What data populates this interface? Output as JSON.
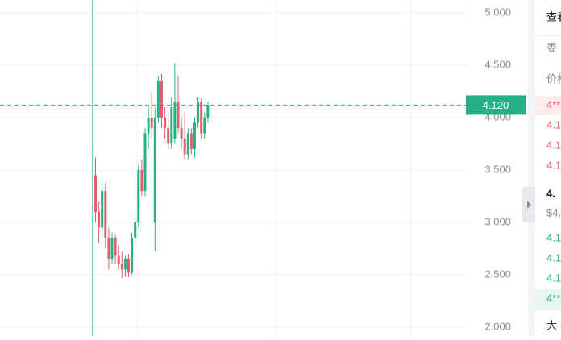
{
  "chart_data": {
    "type": "candlestick",
    "categories": [
      null,
      null,
      null,
      null,
      null,
      null,
      null,
      null,
      null,
      null,
      null,
      null,
      null,
      null,
      null,
      null,
      null,
      null,
      null,
      null,
      null,
      null,
      null,
      null,
      null,
      null,
      null,
      null,
      null,
      null,
      null,
      null,
      null,
      null,
      null
    ],
    "open": [
      3.45,
      3.1,
      2.95,
      3.3,
      2.85,
      2.65,
      2.85,
      2.68,
      2.6,
      2.55,
      2.65,
      2.52,
      2.85,
      3.0,
      3.5,
      3.3,
      3.85,
      4.0,
      3.0,
      4.0,
      4.35,
      4.0,
      3.9,
      3.75,
      3.8,
      4.15,
      3.9,
      3.8,
      3.65,
      3.85,
      3.7,
      3.95,
      4.15,
      3.85,
      4.0
    ],
    "high": [
      3.62,
      3.2,
      3.38,
      3.38,
      2.95,
      2.9,
      2.88,
      2.78,
      2.72,
      2.68,
      2.7,
      2.9,
      3.05,
      3.55,
      3.6,
      3.9,
      4.1,
      4.25,
      4.1,
      4.4,
      4.42,
      4.1,
      4.05,
      4.2,
      4.52,
      4.4,
      4.0,
      4.05,
      3.9,
      3.9,
      4.0,
      4.2,
      4.18,
      4.05,
      4.15
    ],
    "low": [
      3.0,
      2.8,
      2.85,
      2.75,
      2.55,
      2.6,
      2.6,
      2.55,
      2.47,
      2.48,
      2.48,
      2.5,
      2.78,
      2.95,
      3.25,
      3.25,
      3.7,
      3.8,
      2.72,
      3.95,
      3.9,
      3.8,
      3.7,
      3.7,
      3.75,
      3.85,
      3.7,
      3.6,
      3.6,
      3.65,
      3.62,
      3.9,
      3.8,
      3.8,
      3.95
    ],
    "close": [
      3.1,
      2.95,
      3.3,
      2.85,
      2.65,
      2.85,
      2.68,
      2.6,
      2.55,
      2.65,
      2.52,
      2.85,
      3.0,
      3.5,
      3.3,
      3.85,
      4.0,
      3.9,
      4.0,
      4.35,
      4.0,
      3.9,
      3.75,
      4.1,
      4.15,
      3.9,
      3.8,
      3.65,
      3.85,
      3.7,
      3.95,
      4.15,
      3.85,
      4.0,
      4.12
    ],
    "up_color": "#26b086",
    "down_color": "#e35d6a",
    "ylim": [
      1.915,
      5.123
    ],
    "yticks": [
      {
        "value": 2,
        "label": "2.000"
      },
      {
        "value": 2.5,
        "label": "2.500"
      },
      {
        "value": 3,
        "label": "3.000"
      },
      {
        "value": 3.5,
        "label": "3.500"
      },
      {
        "value": 4,
        "label": "4.000"
      },
      {
        "value": 4.5,
        "label": "4.500"
      },
      {
        "value": 5,
        "label": "5.000"
      }
    ],
    "grid": true,
    "last_price": 4.12,
    "last_price_label": "4.120"
  },
  "order_book": {
    "header": "查看",
    "tab": "委",
    "price_label": "价格",
    "asks": [
      "4**",
      "4.1",
      "4.1",
      "4.1"
    ],
    "last": "4.",
    "last_usd": "$4.",
    "bids": [
      "4.1",
      "4.1",
      "4.1",
      "4**"
    ],
    "footer": "大"
  }
}
